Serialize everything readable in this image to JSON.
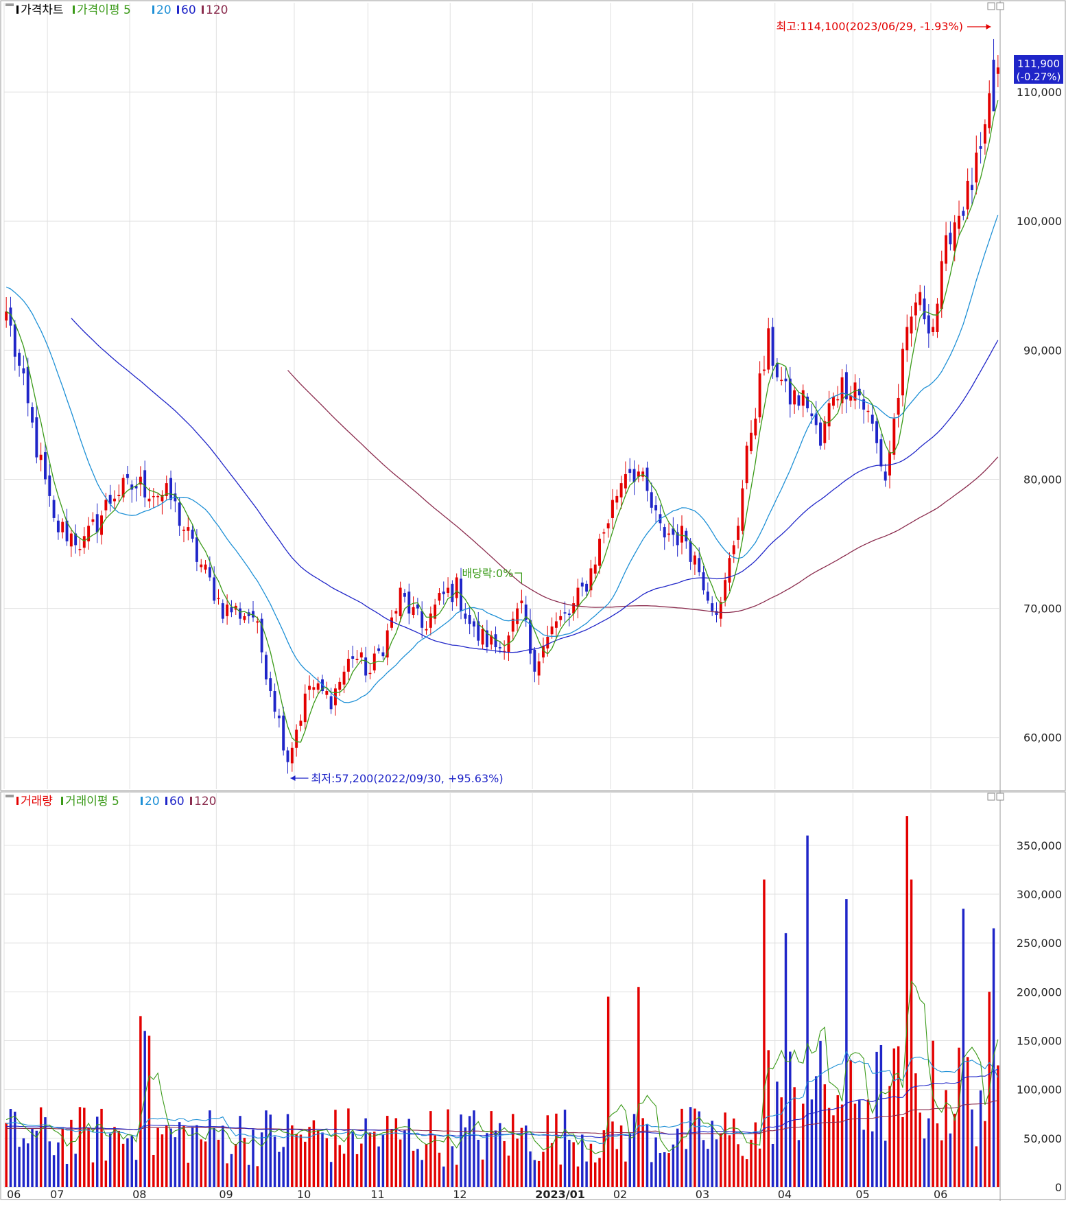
{
  "price_panel": {
    "legend": [
      {
        "label": "가격차트",
        "color": "#000000"
      },
      {
        "label": "가격이평 5",
        "color": "#3a9a18"
      },
      {
        "label": "20",
        "color": "#1e90d6"
      },
      {
        "label": "60",
        "color": "#1f25c8"
      },
      {
        "label": "120",
        "color": "#8b2c4e"
      }
    ],
    "high_annotation": "최고:114,100(2023/06/29, -1.93%)",
    "low_annotation": "최저:57,200(2022/09/30, +95.63%)",
    "dividend_annotation": "배당락:0%",
    "last_price_label": "111,900",
    "last_change_label": "(-0.27%)",
    "y_ticks": [
      {
        "value": 60000,
        "label": "60,000"
      },
      {
        "value": 70000,
        "label": "70,000"
      },
      {
        "value": 80000,
        "label": "80,000"
      },
      {
        "value": 90000,
        "label": "90,000"
      },
      {
        "value": 100000,
        "label": "100,000"
      },
      {
        "value": 110000,
        "label": "110,000"
      }
    ]
  },
  "volume_panel": {
    "legend": [
      {
        "label": "거래량",
        "color": "#e30000"
      },
      {
        "label": "거래이평 5",
        "color": "#3a9a18"
      },
      {
        "label": "20",
        "color": "#1e90d6"
      },
      {
        "label": "60",
        "color": "#1f25c8"
      },
      {
        "label": "120",
        "color": "#8b2c4e"
      }
    ],
    "y_ticks": [
      {
        "value": 0,
        "label": "0"
      },
      {
        "value": 50000,
        "label": "50,000"
      },
      {
        "value": 100000,
        "label": "100,000"
      },
      {
        "value": 150000,
        "label": "150,000"
      },
      {
        "value": 200000,
        "label": "200,000"
      },
      {
        "value": 250000,
        "label": "250,000"
      },
      {
        "value": 300000,
        "label": "300,000"
      },
      {
        "value": 350000,
        "label": "350,000"
      }
    ]
  },
  "x_axis": {
    "months": [
      {
        "label": "06",
        "idx": 0,
        "bold": false
      },
      {
        "label": "07",
        "idx": 10,
        "bold": false
      },
      {
        "label": "08",
        "idx": 29,
        "bold": false
      },
      {
        "label": "09",
        "idx": 49,
        "bold": false
      },
      {
        "label": "10",
        "idx": 67,
        "bold": false
      },
      {
        "label": "11",
        "idx": 84,
        "bold": false
      },
      {
        "label": "12",
        "idx": 103,
        "bold": false
      },
      {
        "label": "2023/01",
        "idx": 122,
        "bold": true
      },
      {
        "label": "02",
        "idx": 140,
        "bold": false
      },
      {
        "label": "03",
        "idx": 159,
        "bold": false
      },
      {
        "label": "04",
        "idx": 178,
        "bold": false
      },
      {
        "label": "05",
        "idx": 196,
        "bold": false
      },
      {
        "label": "06",
        "idx": 214,
        "bold": false
      }
    ]
  },
  "chart_data": {
    "type": "candlestick",
    "candles": {
      "count": 230,
      "start": 93000,
      "end": 111900,
      "high": 114100,
      "high_idx": 228,
      "low": 57200,
      "low_idx": 65,
      "dividend_idx": 119
    },
    "anchors": [
      [
        0,
        93000
      ],
      [
        6,
        84000
      ],
      [
        11,
        76500
      ],
      [
        18,
        75000
      ],
      [
        25,
        79000
      ],
      [
        31,
        79500
      ],
      [
        38,
        78500
      ],
      [
        44,
        74000
      ],
      [
        50,
        70000
      ],
      [
        57,
        69500
      ],
      [
        61,
        64000
      ],
      [
        65,
        58500
      ],
      [
        70,
        64000
      ],
      [
        75,
        63000
      ],
      [
        80,
        66500
      ],
      [
        84,
        65000
      ],
      [
        88,
        68000
      ],
      [
        91,
        71000
      ],
      [
        96,
        68500
      ],
      [
        101,
        71000
      ],
      [
        104,
        71500
      ],
      [
        108,
        68000
      ],
      [
        114,
        67000
      ],
      [
        119,
        70000
      ],
      [
        122,
        64500
      ],
      [
        124,
        68000
      ],
      [
        130,
        69500
      ],
      [
        134,
        72000
      ],
      [
        138,
        76000
      ],
      [
        143,
        81000
      ],
      [
        146,
        80500
      ],
      [
        151,
        76000
      ],
      [
        157,
        75500
      ],
      [
        163,
        70500
      ],
      [
        165,
        70000
      ],
      [
        169,
        77000
      ],
      [
        172,
        84000
      ],
      [
        176,
        90500
      ],
      [
        180,
        86500
      ],
      [
        185,
        86000
      ],
      [
        188,
        82500
      ],
      [
        191,
        87000
      ],
      [
        196,
        87500
      ],
      [
        200,
        84000
      ],
      [
        203,
        80000
      ],
      [
        207,
        89000
      ],
      [
        210,
        94000
      ],
      [
        214,
        92000
      ],
      [
        218,
        99500
      ],
      [
        222,
        102000
      ],
      [
        226,
        106000
      ],
      [
        228,
        112000
      ],
      [
        229,
        111900
      ]
    ],
    "moving_averages": {
      "ma5": {
        "period": 5,
        "color": "#3a9a18"
      },
      "ma20": {
        "period": 20,
        "color": "#1e90d6"
      },
      "ma60": {
        "period": 60,
        "color": "#1f25c8"
      },
      "ma120": {
        "period": 120,
        "color": "#8b2c4e"
      }
    },
    "volume": {
      "base_before_april": 60000,
      "base_after_april": 110000,
      "spikes": [
        {
          "idx": 31,
          "value": 175000
        },
        {
          "idx": 32,
          "value": 160000
        },
        {
          "idx": 33,
          "value": 155000
        },
        {
          "idx": 139,
          "value": 195000
        },
        {
          "idx": 146,
          "value": 205000
        },
        {
          "idx": 175,
          "value": 315000
        },
        {
          "idx": 180,
          "value": 260000
        },
        {
          "idx": 185,
          "value": 360000
        },
        {
          "idx": 194,
          "value": 295000
        },
        {
          "idx": 208,
          "value": 380000
        },
        {
          "idx": 209,
          "value": 315000
        },
        {
          "idx": 221,
          "value": 285000
        },
        {
          "idx": 228,
          "value": 265000
        },
        {
          "idx": 227,
          "value": 200000
        }
      ]
    },
    "colors": {
      "up": "#e30000",
      "down": "#1f25c8",
      "grid": "#e0e0e0",
      "annotation_red": "#e30000",
      "annotation_green": "#3a9a18",
      "last_price_bg": "#1f25c8"
    }
  }
}
